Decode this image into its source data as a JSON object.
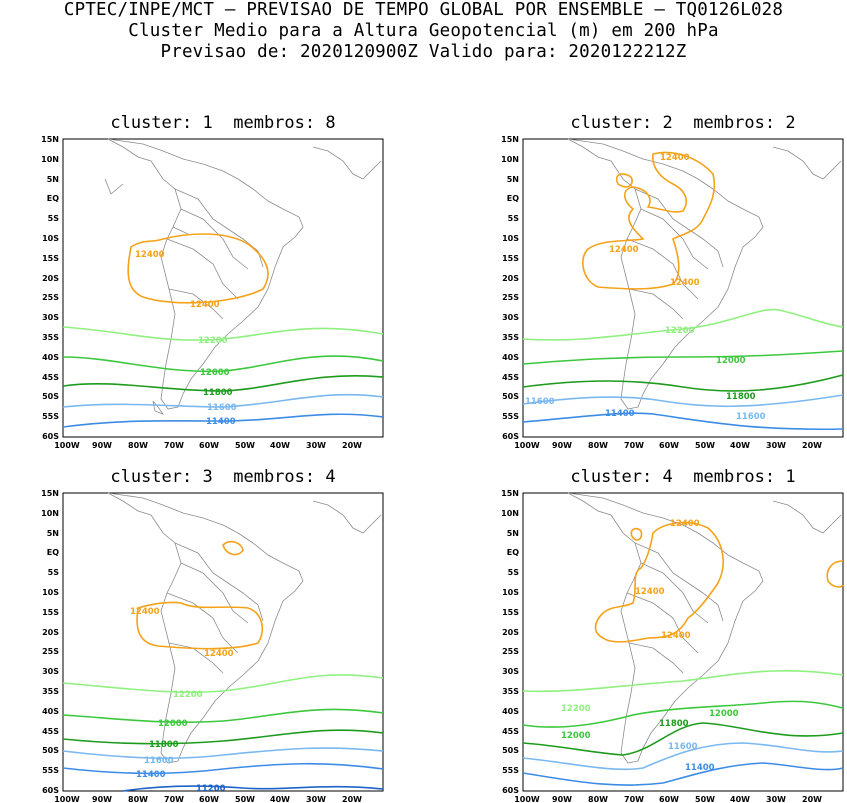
{
  "header": {
    "line1": "CPTEC/INPE/MCT – PREVISAO DE TEMPO GLOBAL POR ENSEMBLE – TQ0126L028",
    "line2": "Cluster Medio para a Altura Geopotencial (m) em 200 hPa",
    "line3": "Previsao de: 2020120900Z   Valido para: 2020122212Z"
  },
  "axes": {
    "lat_labels": [
      "15N",
      "10N",
      "5N",
      "EQ",
      "5S",
      "10S",
      "15S",
      "20S",
      "25S",
      "30S",
      "35S",
      "40S",
      "45S",
      "50S",
      "55S",
      "60S"
    ],
    "lon_labels": [
      "100W",
      "90W",
      "80W",
      "70W",
      "60W",
      "50W",
      "40W",
      "30W",
      "20W"
    ]
  },
  "contour_colors": {
    "12400": "#f5a219",
    "12200": "#90f080",
    "12000": "#3cc83c",
    "11800": "#1e9b1e",
    "11600": "#7ab8f0",
    "11400": "#3c8ce6",
    "11200": "#1e64c8"
  },
  "panels": [
    {
      "cluster_label": "cluster:",
      "cluster_value": "1",
      "members_label": "membros:",
      "members_value": "8",
      "contours": [
        {
          "level": "12400",
          "label": "12400",
          "label2": "12400"
        },
        {
          "level": "12200",
          "label": "12200"
        },
        {
          "level": "12000",
          "label": "12000"
        },
        {
          "level": "11800",
          "label": "11800"
        },
        {
          "level": "11600",
          "label": "11600"
        },
        {
          "level": "11400",
          "label": "11400"
        }
      ]
    },
    {
      "cluster_label": "cluster:",
      "cluster_value": "2",
      "members_label": "membros:",
      "members_value": "2",
      "contours": [
        {
          "level": "12400",
          "label": "12400",
          "label2": "12400",
          "label3": "12400"
        },
        {
          "level": "12200",
          "label": "12200"
        },
        {
          "level": "12000",
          "label": "12000"
        },
        {
          "level": "11800",
          "label": "11800"
        },
        {
          "level": "11600",
          "label": "11600",
          "label2": "11600"
        },
        {
          "level": "11400",
          "label": "11400"
        }
      ]
    },
    {
      "cluster_label": "cluster:",
      "cluster_value": "3",
      "members_label": "membros:",
      "members_value": "4",
      "contours": [
        {
          "level": "12400",
          "label": "12400",
          "label2": "12400"
        },
        {
          "level": "12200",
          "label": "12200"
        },
        {
          "level": "12000",
          "label": "12000"
        },
        {
          "level": "11800",
          "label": "11800"
        },
        {
          "level": "11600",
          "label": "11600"
        },
        {
          "level": "11400",
          "label": "11400"
        },
        {
          "level": "11200",
          "label": "11200"
        }
      ]
    },
    {
      "cluster_label": "cluster:",
      "cluster_value": "4",
      "members_label": "membros:",
      "members_value": "1",
      "contours": [
        {
          "level": "12400",
          "label": "12400",
          "label2": "12400",
          "label3": "12400"
        },
        {
          "level": "12200",
          "label": "12200"
        },
        {
          "level": "12000",
          "label": "12000",
          "label2": "12000"
        },
        {
          "level": "11800",
          "label": "11800"
        },
        {
          "level": "11600",
          "label": "11600"
        },
        {
          "level": "11400",
          "label": "11400"
        }
      ]
    }
  ]
}
